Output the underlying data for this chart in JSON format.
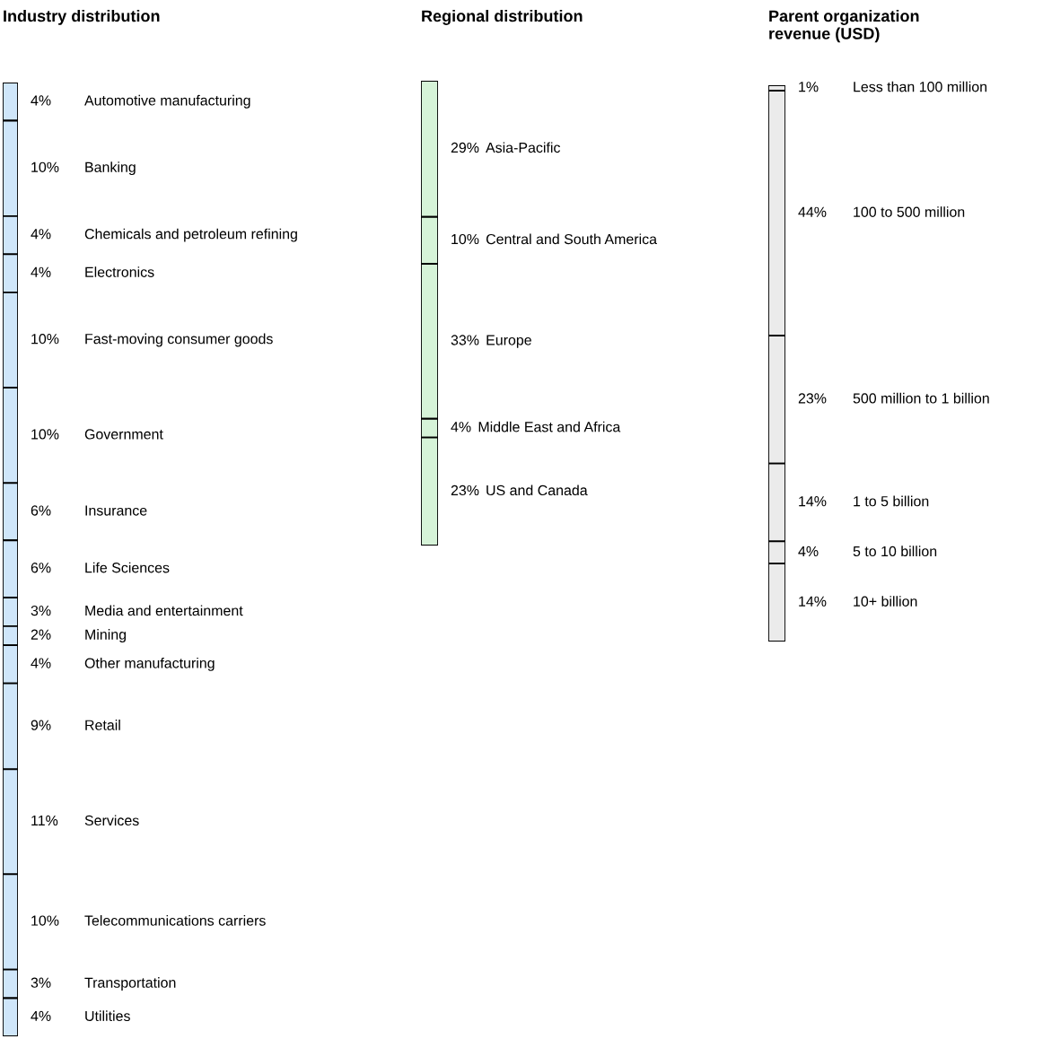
{
  "chart_data": [
    {
      "type": "other",
      "title": "Industry distribution",
      "color": "#cfe6fa",
      "categories": [
        "Automotive manufacturing",
        "Banking",
        "Chemicals and petroleum refining",
        "Electronics",
        "Fast-moving consumer goods",
        "Government",
        "Insurance",
        "Life Sciences",
        "Media and entertainment",
        "Mining",
        "Other manufacturing",
        "Retail",
        "Services",
        "Telecommunications carriers",
        "Transportation",
        "Utilities"
      ],
      "values": [
        4,
        10,
        4,
        4,
        10,
        10,
        6,
        6,
        3,
        2,
        4,
        9,
        11,
        10,
        3,
        4
      ],
      "value_labels": [
        "4%",
        "10%",
        "4%",
        "4%",
        "10%",
        "10%",
        "6%",
        "6%",
        "3%",
        "2%",
        "4%",
        "9%",
        "11%",
        "10%",
        "3%",
        "4%"
      ]
    },
    {
      "type": "other",
      "title": "Regional distribution",
      "color": "#d6f3d8",
      "categories": [
        "Asia-Pacific",
        "Central and South America",
        "Europe",
        "Middle East and Africa",
        "US and Canada"
      ],
      "values": [
        29,
        10,
        33,
        4,
        23
      ],
      "value_labels": [
        "29%",
        "10%",
        "33%",
        "4%",
        "23%"
      ]
    },
    {
      "type": "other",
      "title": "Parent organization\nrevenue (USD)",
      "color": "#ebebeb",
      "categories": [
        "Less than 100 million",
        "100 to 500 million",
        "500 million to 1 billion",
        "1 to 5 billion",
        "5 to 10 billion",
        "10+ billion"
      ],
      "values": [
        1,
        44,
        23,
        14,
        4,
        14
      ],
      "value_labels": [
        "1%",
        "44%",
        "23%",
        "14%",
        "4%",
        "14%"
      ]
    }
  ]
}
